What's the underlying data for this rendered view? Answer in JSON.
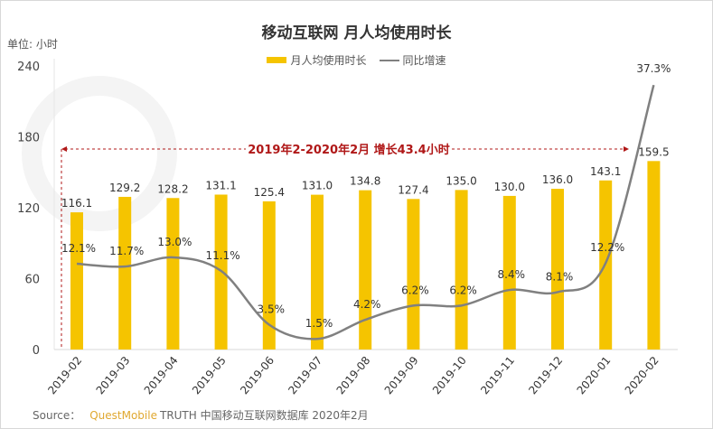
{
  "chart_data": {
    "type": "bar+line",
    "title": "移动互联网 月人均使用时长",
    "unit_label": "单位: 小时",
    "categories": [
      "2019-02",
      "2019-03",
      "2019-04",
      "2019-05",
      "2019-06",
      "2019-07",
      "2019-08",
      "2019-09",
      "2019-10",
      "2019-11",
      "2019-12",
      "2020-01",
      "2020-02"
    ],
    "series": [
      {
        "name": "月人均使用时长",
        "type": "bar",
        "axis": "left",
        "color": "#f5c400",
        "values": [
          116.1,
          129.2,
          128.2,
          131.1,
          125.4,
          131.0,
          134.8,
          127.4,
          135.0,
          130.0,
          136.0,
          143.1,
          159.5
        ],
        "labels": [
          "116.1",
          "129.2",
          "128.2",
          "131.1",
          "125.4",
          "131.0",
          "134.8",
          "127.4",
          "135.0",
          "130.0",
          "136.0",
          "143.1",
          "159.5"
        ]
      },
      {
        "name": "同比增速",
        "type": "line",
        "axis": "right-hidden",
        "color": "#808080",
        "values": [
          12.1,
          11.7,
          13.0,
          11.1,
          3.5,
          1.5,
          4.2,
          6.2,
          6.2,
          8.4,
          8.1,
          12.2,
          37.3
        ],
        "labels": [
          "12.1%",
          "11.7%",
          "13.0%",
          "11.1%",
          "3.5%",
          "1.5%",
          "4.2%",
          "6.2%",
          "6.2%",
          "8.4%",
          "8.1%",
          "12.2%",
          "37.3%"
        ]
      }
    ],
    "yticks": [
      "0",
      "60",
      "120",
      "180",
      "240"
    ],
    "ylim": [
      0,
      240
    ],
    "y2lim": [
      0,
      40
    ],
    "legend": "top-center",
    "grid": false,
    "annotation": "2019年2-2020年2月  增长43.4小时",
    "annotation_color": "#b01818",
    "watermark": "QUESTMOBILE"
  },
  "source": {
    "prefix": "Source：",
    "brand": "QuestMobile",
    "text": "TRUTH 中国移动互联网数据库 2020年2月"
  }
}
